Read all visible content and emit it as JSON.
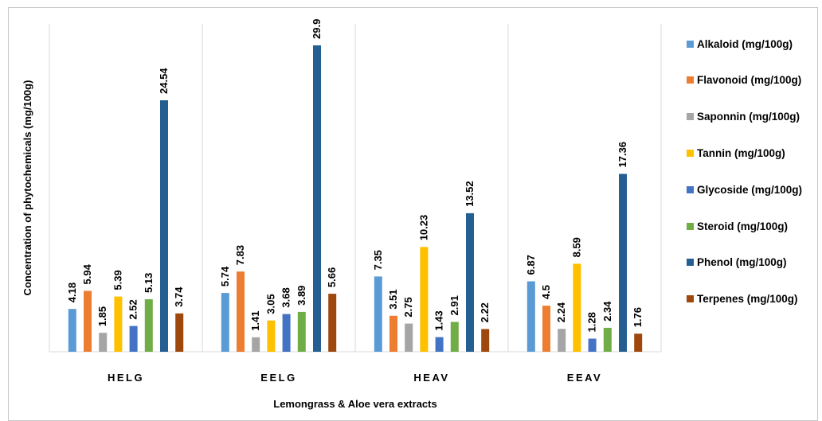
{
  "chart_data": {
    "type": "bar",
    "title": "",
    "xlabel": "Lemongrass & Aloe vera extracts",
    "ylabel": "Concentration of phytochemicals (mg/100g)",
    "categories": [
      "HELG",
      "EELG",
      "HEAV",
      "EEAV"
    ],
    "ylim": [
      0,
      32
    ],
    "grid": false,
    "legend": "right",
    "series": [
      {
        "name": "Alkaloid (mg/100g)",
        "color": "#5b9bd5",
        "values": [
          4.18,
          5.74,
          7.35,
          6.87
        ]
      },
      {
        "name": "Flavonoid (mg/100g)",
        "color": "#ed7d31",
        "values": [
          5.94,
          7.83,
          3.51,
          4.5
        ]
      },
      {
        "name": "Saponnin (mg/100g)",
        "color": "#a5a5a5",
        "values": [
          1.85,
          1.41,
          2.75,
          2.24
        ]
      },
      {
        "name": "Tannin (mg/100g)",
        "color": "#ffc000",
        "values": [
          5.39,
          3.05,
          10.23,
          8.59
        ]
      },
      {
        "name": "Glycoside (mg/100g)",
        "color": "#4472c4",
        "values": [
          2.52,
          3.68,
          1.43,
          1.28
        ]
      },
      {
        "name": "Steroid (mg/100g)",
        "color": "#70ad47",
        "values": [
          5.13,
          3.89,
          2.91,
          2.34
        ]
      },
      {
        "name": "Phenol (mg/100g)",
        "color": "#255e91",
        "values": [
          24.54,
          29.9,
          13.52,
          17.36
        ]
      },
      {
        "name": "Terpenes (mg/100g)",
        "color": "#9e480e",
        "values": [
          3.74,
          5.66,
          2.22,
          1.76
        ]
      }
    ]
  }
}
